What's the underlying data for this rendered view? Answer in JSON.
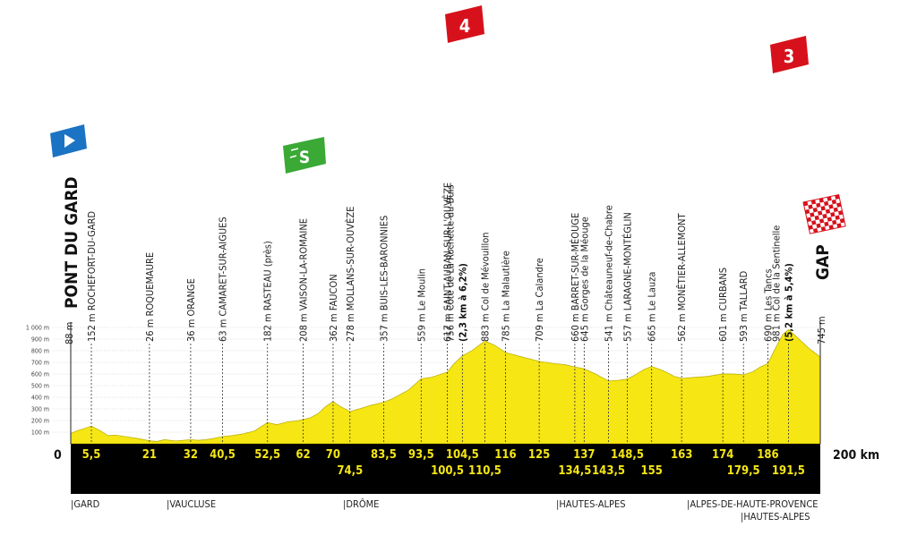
{
  "chart_data": {
    "type": "area",
    "total_distance": "200 km",
    "start_km_label": "0",
    "yaxis": {
      "ticks": [
        "100 m",
        "200 m",
        "300 m",
        "400 m",
        "500 m",
        "600 m",
        "700 m",
        "800 m",
        "900 m",
        "1 000 m"
      ],
      "ylim": [
        0,
        1000
      ]
    },
    "xlim": [
      0,
      200
    ],
    "profile": [
      [
        0,
        88
      ],
      [
        1.5,
        110
      ],
      [
        3,
        125
      ],
      [
        5.5,
        152
      ],
      [
        8,
        110
      ],
      [
        10,
        70
      ],
      [
        12,
        75
      ],
      [
        15,
        60
      ],
      [
        18,
        45
      ],
      [
        21,
        26
      ],
      [
        23,
        20
      ],
      [
        25,
        35
      ],
      [
        28,
        25
      ],
      [
        30,
        30
      ],
      [
        32,
        36
      ],
      [
        34,
        30
      ],
      [
        36,
        35
      ],
      [
        38,
        45
      ],
      [
        40.5,
        63
      ],
      [
        43,
        70
      ],
      [
        46,
        85
      ],
      [
        49,
        110
      ],
      [
        52.5,
        182
      ],
      [
        55,
        165
      ],
      [
        58,
        190
      ],
      [
        60,
        195
      ],
      [
        62,
        208
      ],
      [
        64,
        225
      ],
      [
        66,
        260
      ],
      [
        68,
        320
      ],
      [
        70,
        362
      ],
      [
        72,
        320
      ],
      [
        74.5,
        278
      ],
      [
        77,
        300
      ],
      [
        80,
        330
      ],
      [
        83.5,
        357
      ],
      [
        86,
        390
      ],
      [
        90,
        460
      ],
      [
        93.5,
        559
      ],
      [
        96,
        570
      ],
      [
        98,
        590
      ],
      [
        100.5,
        617
      ],
      [
        102,
        680
      ],
      [
        104.5,
        756
      ],
      [
        107,
        800
      ],
      [
        110.5,
        883
      ],
      [
        113,
        850
      ],
      [
        116,
        785
      ],
      [
        120,
        750
      ],
      [
        125,
        709
      ],
      [
        129,
        690
      ],
      [
        132,
        680
      ],
      [
        134.5,
        660
      ],
      [
        137,
        645
      ],
      [
        140,
        600
      ],
      [
        143.5,
        541
      ],
      [
        146,
        545
      ],
      [
        148.5,
        557
      ],
      [
        151,
        600
      ],
      [
        153,
        640
      ],
      [
        155,
        665
      ],
      [
        158,
        630
      ],
      [
        161,
        580
      ],
      [
        163,
        562
      ],
      [
        166,
        570
      ],
      [
        170,
        580
      ],
      [
        174,
        601
      ],
      [
        177,
        600
      ],
      [
        179.5,
        593
      ],
      [
        182,
        620
      ],
      [
        184,
        660
      ],
      [
        186,
        690
      ],
      [
        188,
        820
      ],
      [
        190,
        940
      ],
      [
        191.5,
        981
      ],
      [
        193,
        940
      ],
      [
        195,
        880
      ],
      [
        197,
        820
      ],
      [
        200,
        745
      ]
    ],
    "km_markers_top": [
      "5,5",
      "21",
      "32",
      "40,5",
      "52,5",
      "62",
      "70",
      "83,5",
      "93,5",
      "104,5",
      "116",
      "125",
      "137",
      "148,5",
      "163",
      "174",
      "186"
    ],
    "km_markers_bottom": [
      "74,5",
      "100,5",
      "110,5",
      "134,5",
      "143,5",
      "155",
      "179,5",
      "191,5"
    ],
    "start": {
      "name": "PONT DU GARD",
      "alt": "88 m"
    },
    "finish": {
      "name": "GAP",
      "alt": "745 m"
    },
    "waypoints": [
      "152 m ROCHEFORT-DU-GARD",
      "26 m ROQUEMAURE",
      "36 m ORANGE",
      "63 m CAMARET-SUR-AIGUES",
      "182 m RASTEAU (près)",
      "208 m VAISON-LA-ROMAINE",
      "362 m FAUCON",
      "278 m MOLLANS-SUR-OUVÈZE",
      "357 m BUIS-LES-BARONNIES",
      "559 m Le Moulin",
      "617 m SAINT-AUBAN-SUR-L'OUVÈZE",
      "756 m Côte de La Rochette-du-Buis",
      "(2,3 km à 6,2%)",
      "883 m Col de Mévouillon",
      "785 m La Malautière",
      "709 m La Calandre",
      "660 m BARRET-SUR-MÉOUGE",
      "645 m Gorges de la Méouge",
      "541 m Châteauneuf-de-Chabre",
      "557 m LARAGNE-MONTÉGLIN",
      "665 m Le Lauza",
      "562 m MONÊTIER-ALLEMONT",
      "601 m CURBANS",
      "593 m TALLARD",
      "690 m Les Tancs",
      "981 m Col de la Sentinelle",
      "(5,2 km à 5,4%)"
    ],
    "climb_badges": [
      "4",
      "3"
    ],
    "departments": [
      "|GARD",
      "|VAUCLUSE",
      "|DRÔME",
      "|HAUTES-ALPES",
      "|ALPES-DE-HAUTE-PROVENCE",
      "|HAUTES-ALPES"
    ]
  },
  "colors": {
    "profile_fill": "#f5e614",
    "band": "#000000",
    "km_text": "#f5e614",
    "start_flag": "#1b73c4",
    "sprint": "#3aa935",
    "climb": "#d7111b"
  }
}
